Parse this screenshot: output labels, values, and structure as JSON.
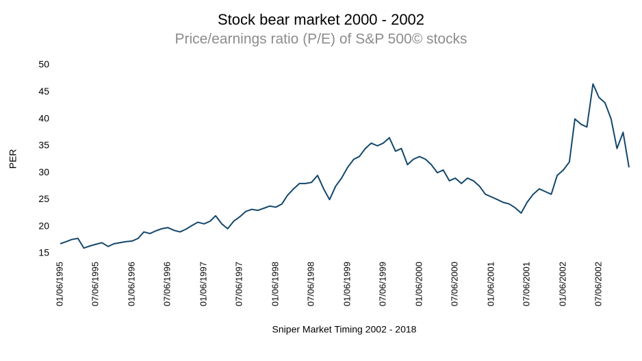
{
  "chart_data": {
    "type": "line",
    "title": "Stock bear market 2000 - 2002",
    "subtitle": "Price/earnings ratio (P/E) of S&P 500© stocks",
    "y_label": "PER",
    "x_label": "Sniper Market Timing 2002 - 2018",
    "x": [
      "1995-01-06",
      "1995-02-06",
      "1995-03-06",
      "1995-04-06",
      "1995-05-06",
      "1995-06-06",
      "1995-07-06",
      "1995-08-06",
      "1995-09-06",
      "1995-10-06",
      "1995-11-06",
      "1995-12-06",
      "1996-01-06",
      "1996-02-06",
      "1996-03-06",
      "1996-04-06",
      "1996-05-06",
      "1996-06-06",
      "1996-07-06",
      "1996-08-06",
      "1996-09-06",
      "1996-10-06",
      "1996-11-06",
      "1996-12-06",
      "1997-01-06",
      "1997-02-06",
      "1997-03-06",
      "1997-04-06",
      "1997-05-06",
      "1997-06-06",
      "1997-07-06",
      "1997-08-06",
      "1997-09-06",
      "1997-10-06",
      "1997-11-06",
      "1997-12-06",
      "1998-01-06",
      "1998-02-06",
      "1998-03-06",
      "1998-04-06",
      "1998-05-06",
      "1998-06-06",
      "1998-07-06",
      "1998-08-06",
      "1998-09-06",
      "1998-10-06",
      "1998-11-06",
      "1998-12-06",
      "1999-01-06",
      "1999-02-06",
      "1999-03-06",
      "1999-04-06",
      "1999-05-06",
      "1999-06-06",
      "1999-07-06",
      "1999-08-06",
      "1999-09-06",
      "1999-10-06",
      "1999-11-06",
      "1999-12-06",
      "2000-01-06",
      "2000-02-06",
      "2000-03-06",
      "2000-04-06",
      "2000-05-06",
      "2000-06-06",
      "2000-07-06",
      "2000-08-06",
      "2000-09-06",
      "2000-10-06",
      "2000-11-06",
      "2000-12-06",
      "2001-01-06",
      "2001-02-06",
      "2001-03-06",
      "2001-04-06",
      "2001-05-06",
      "2001-06-06",
      "2001-07-06",
      "2001-08-06",
      "2001-09-06",
      "2001-10-06",
      "2001-11-06",
      "2001-12-06",
      "2002-01-06",
      "2002-02-06",
      "2002-03-06",
      "2002-04-06",
      "2002-05-06",
      "2002-06-06",
      "2002-07-06",
      "2002-08-06",
      "2002-09-06",
      "2002-10-06",
      "2002-11-06",
      "2002-12-06"
    ],
    "series": [
      {
        "name": "PER",
        "color": "#12466b",
        "values": [
          16.8,
          17.2,
          17.6,
          17.8,
          16.0,
          16.4,
          16.7,
          17.0,
          16.3,
          16.8,
          17.0,
          17.2,
          17.3,
          17.8,
          19.0,
          18.7,
          19.2,
          19.6,
          19.8,
          19.3,
          19.0,
          19.5,
          20.2,
          20.8,
          20.5,
          21.0,
          22.0,
          20.5,
          19.6,
          21.0,
          21.8,
          22.8,
          23.2,
          23.0,
          23.4,
          23.8,
          23.6,
          24.2,
          25.8,
          27.0,
          28.0,
          28.0,
          28.2,
          29.5,
          27.0,
          25.0,
          27.5,
          29.0,
          31.0,
          32.5,
          33.0,
          34.5,
          35.5,
          35.0,
          35.5,
          36.5,
          34.0,
          34.5,
          31.5,
          32.5,
          33.0,
          32.5,
          31.5,
          30.0,
          30.5,
          28.5,
          29.0,
          28.0,
          29.0,
          28.5,
          27.5,
          26.0,
          25.5,
          25.0,
          24.5,
          24.2,
          23.5,
          22.5,
          24.5,
          26.0,
          27.0,
          26.5,
          26.0,
          29.5,
          30.5,
          32.0,
          40.0,
          39.0,
          38.5,
          46.5,
          44.0,
          43.0,
          40.0,
          34.5,
          37.5,
          31.0
        ]
      }
    ],
    "xlim": [
      "1995-01-06",
      "2002-12-06"
    ],
    "xticks": [
      {
        "value": "1995-01-06",
        "label": "01/06/1995"
      },
      {
        "value": "1995-07-06",
        "label": "07/06/1995"
      },
      {
        "value": "1996-01-06",
        "label": "01/06/1996"
      },
      {
        "value": "1996-07-06",
        "label": "07/06/1996"
      },
      {
        "value": "1997-01-06",
        "label": "01/06/1997"
      },
      {
        "value": "1997-07-06",
        "label": "07/06/1997"
      },
      {
        "value": "1998-01-06",
        "label": "01/06/1998"
      },
      {
        "value": "1998-07-06",
        "label": "07/06/1998"
      },
      {
        "value": "1999-01-06",
        "label": "01/06/1999"
      },
      {
        "value": "1999-07-06",
        "label": "07/06/1999"
      },
      {
        "value": "2000-01-06",
        "label": "01/06/2000"
      },
      {
        "value": "2000-07-06",
        "label": "07/06/2000"
      },
      {
        "value": "2001-01-06",
        "label": "01/06/2001"
      },
      {
        "value": "2001-07-06",
        "label": "07/06/2001"
      },
      {
        "value": "2002-01-06",
        "label": "01/06/2002"
      },
      {
        "value": "2002-07-06",
        "label": "07/06/2002"
      }
    ],
    "ylim": [
      15,
      50
    ],
    "yticks": [
      15,
      20,
      25,
      30,
      35,
      40,
      45,
      50
    ],
    "grid": false
  }
}
